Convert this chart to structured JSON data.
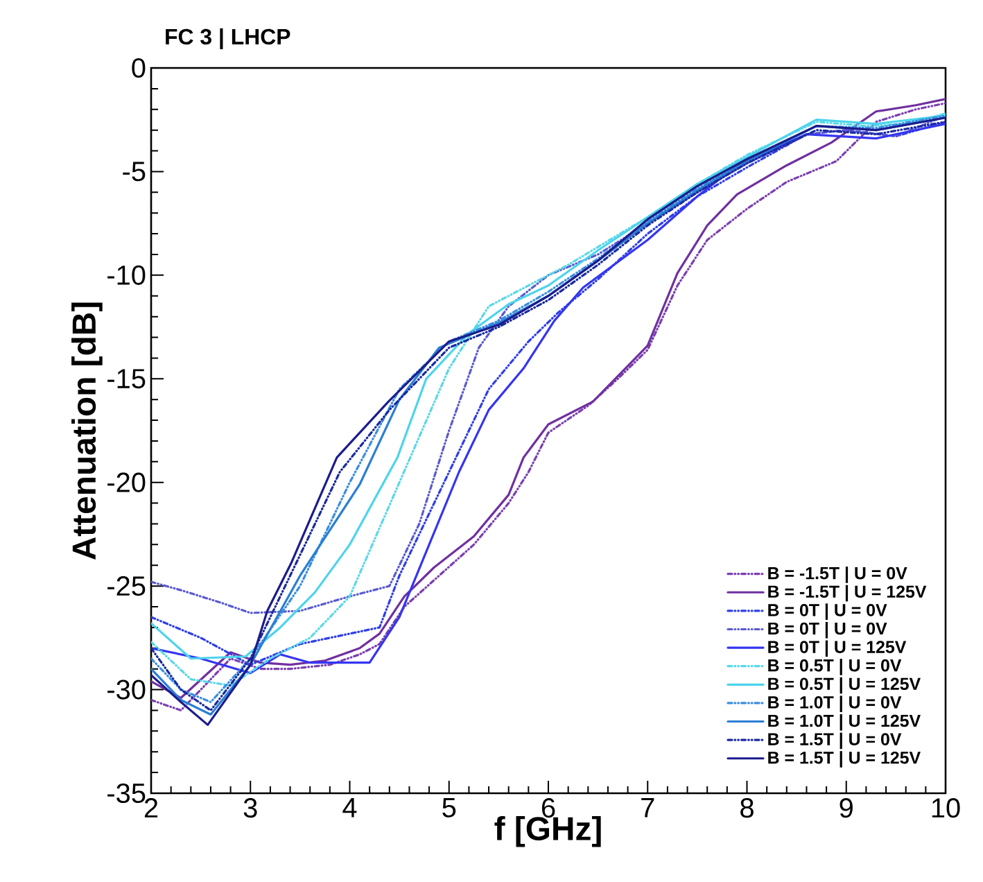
{
  "chart_data": {
    "type": "line",
    "title": "FC 3  |  LHCP",
    "xlabel": "f [GHz]",
    "ylabel": "Attenuation [dB]",
    "xlim": [
      2,
      10
    ],
    "xticks": [
      2,
      3,
      4,
      5,
      6,
      7,
      8,
      9,
      10
    ],
    "ylim": [
      -35,
      0
    ],
    "yticks": [
      -35,
      -30,
      -25,
      -20,
      -15,
      -10,
      -5,
      0
    ],
    "grid": false,
    "legend": "bottom right",
    "marker": "none",
    "series": [
      {
        "name": "B = -1.5T  |  U = 0V",
        "color": "#7b3fb0",
        "line_style": "dashdotdotted",
        "x": [
          2,
          2.3,
          2.8,
          3.1,
          3.4,
          3.8,
          4.1,
          4.3,
          4.55,
          4.9,
          5.25,
          5.6,
          5.8,
          6.0,
          6.4,
          6.7,
          7.0,
          7.3,
          7.6,
          8.0,
          8.4,
          8.9,
          9.3,
          9.7,
          10
        ],
        "values": [
          -30.5,
          -31,
          -28.5,
          -29,
          -29,
          -28.8,
          -28.3,
          -27.8,
          -26,
          -24.5,
          -23,
          -21,
          -19.5,
          -17.6,
          -16.3,
          -15,
          -13.6,
          -10.5,
          -8.3,
          -6.8,
          -5.5,
          -4.5,
          -2.6,
          -2.0,
          -1.7
        ]
      },
      {
        "name": "B = -1.5T  |  U = 125V",
        "color": "#7030a0",
        "line_style": "solid",
        "x": [
          2,
          2.3,
          2.8,
          3.1,
          3.4,
          3.75,
          4.1,
          4.3,
          4.55,
          4.85,
          5.25,
          5.6,
          5.75,
          6.0,
          6.45,
          7.0,
          7.3,
          7.6,
          7.9,
          8.4,
          8.85,
          9.3,
          9.7,
          10
        ],
        "values": [
          -29.6,
          -30.4,
          -28.2,
          -28.7,
          -28.8,
          -28.6,
          -28,
          -27.3,
          -25.5,
          -24.1,
          -22.6,
          -20.6,
          -18.8,
          -17.2,
          -16.1,
          -13.4,
          -9.9,
          -7.6,
          -6.1,
          -4.7,
          -3.6,
          -2.1,
          -1.8,
          -1.5
        ]
      },
      {
        "name": "B = 0T  |  U = 0V",
        "color": "#2f3fe8",
        "line_style": "dashdotdotted",
        "x": [
          2,
          2.5,
          3.0,
          3.5,
          4.0,
          4.3,
          4.5,
          4.8,
          5.1,
          5.4,
          5.8,
          6.1,
          6.5,
          7.0,
          7.5,
          8.0,
          8.6,
          9.0,
          9.5,
          10
        ],
        "values": [
          -26.5,
          -27.5,
          -28.8,
          -27.8,
          -27.3,
          -27,
          -24.5,
          -21.5,
          -18.5,
          -15.5,
          -13.2,
          -11.8,
          -10.2,
          -8.0,
          -6.2,
          -4.8,
          -3.2,
          -3.0,
          -3.3,
          -2.6
        ]
      },
      {
        "name": "B = 0T  |  U = 0V",
        "color": "#5a5ad0",
        "line_style": "dashdotdotted",
        "x": [
          2,
          2.3,
          2.7,
          3.0,
          3.5,
          4.0,
          4.4,
          4.7,
          5.0,
          5.3,
          5.6,
          6.0,
          6.5,
          7.0,
          7.5,
          8.0,
          8.6,
          9.0,
          9.5,
          10
        ],
        "values": [
          -24.8,
          -25.2,
          -25.8,
          -26.3,
          -26.2,
          -25.5,
          -25,
          -22,
          -17.5,
          -13.5,
          -11.5,
          -10.0,
          -9.0,
          -7.5,
          -6,
          -4.6,
          -3.2,
          -3.0,
          -3.3,
          -2.3
        ]
      },
      {
        "name": "B = 0T  |  U = 125V",
        "color": "#3535f0",
        "line_style": "solid",
        "x": [
          2,
          2.5,
          3.0,
          3.3,
          3.6,
          4.2,
          4.5,
          4.8,
          5.1,
          5.4,
          5.75,
          6.06,
          6.35,
          7.0,
          7.5,
          7.9,
          8.6,
          9.3,
          10
        ],
        "values": [
          -28,
          -28.5,
          -29.2,
          -28.3,
          -28.7,
          -28.7,
          -26.5,
          -23,
          -19.5,
          -16.5,
          -14.5,
          -12.2,
          -10.6,
          -8.3,
          -6.2,
          -4.7,
          -3.2,
          -3.4,
          -2.7
        ]
      },
      {
        "name": "B = 0.5T  |  U = 0V",
        "color": "#5ad8e8",
        "line_style": "dashdotdotted",
        "x": [
          2,
          2.4,
          2.8,
          3.2,
          3.6,
          4.0,
          4.5,
          5.0,
          5.4,
          5.8,
          6.2,
          7.0,
          7.5,
          8.0,
          8.7,
          9.2,
          9.6,
          10
        ],
        "values": [
          -27.7,
          -29.5,
          -29.8,
          -28.5,
          -27.5,
          -25.5,
          -20,
          -14.5,
          -11.5,
          -10.5,
          -9.5,
          -7.2,
          -5.6,
          -4.2,
          -2.6,
          -2.8,
          -2.7,
          -2.2
        ]
      },
      {
        "name": "B = 0.5T  |  U = 125V",
        "color": "#4cd4ec",
        "line_style": "solid",
        "x": [
          2,
          2.4,
          2.95,
          3.3,
          3.65,
          4.0,
          4.48,
          4.77,
          5.2,
          5.6,
          6.0,
          6.5,
          7.0,
          7.5,
          8.0,
          8.7,
          9.3,
          10
        ],
        "values": [
          -26.8,
          -28.5,
          -28.4,
          -27,
          -25.3,
          -23,
          -18.8,
          -15,
          -12.8,
          -11.4,
          -10.5,
          -8.8,
          -7.2,
          -5.6,
          -4.3,
          -2.5,
          -2.7,
          -2.3
        ]
      },
      {
        "name": "B = 1.0T  |  U = 0V",
        "color": "#3a8ee0",
        "line_style": "dashdotdotted",
        "x": [
          2,
          2.3,
          2.6,
          3.0,
          3.5,
          4.0,
          4.5,
          5.0,
          5.5,
          6.0,
          6.5,
          7.0,
          7.5,
          8.0,
          8.7,
          9.3,
          10
        ],
        "values": [
          -28.5,
          -30,
          -30.6,
          -28.5,
          -25,
          -20,
          -15.5,
          -13.2,
          -12.2,
          -10.8,
          -9.2,
          -7.4,
          -5.8,
          -4.4,
          -2.8,
          -2.9,
          -2.3
        ]
      },
      {
        "name": "B = 1.0T  |  U = 125V",
        "color": "#2a7fd4",
        "line_style": "solid",
        "x": [
          2,
          2.3,
          2.6,
          3.0,
          3.5,
          4.1,
          4.5,
          4.9,
          5.5,
          6.0,
          6.5,
          7.0,
          7.5,
          8.0,
          8.7,
          9.3,
          10
        ],
        "values": [
          -29,
          -30.5,
          -31.2,
          -28.8,
          -24.5,
          -20.1,
          -16,
          -13.5,
          -12.3,
          -11,
          -9.3,
          -7.5,
          -5.9,
          -4.5,
          -2.8,
          -3.0,
          -2.4
        ]
      },
      {
        "name": "B = 1.5T  |  U = 0V",
        "color": "#1a2aa0",
        "line_style": "dashdotdotted",
        "x": [
          2,
          2.3,
          2.6,
          3.0,
          3.4,
          3.9,
          4.4,
          5.0,
          5.5,
          6.0,
          6.5,
          7.0,
          7.5,
          8.0,
          8.7,
          9.3,
          10
        ],
        "values": [
          -28,
          -30,
          -31,
          -28.5,
          -24.5,
          -19.5,
          -16.5,
          -13.5,
          -12.5,
          -11.2,
          -9.5,
          -7.6,
          -6.0,
          -4.6,
          -3.0,
          -3.2,
          -2.6
        ]
      },
      {
        "name": "B = 1.5T  |  U = 125V",
        "color": "#1c1c8c",
        "line_style": "solid",
        "x": [
          2,
          2.3,
          2.57,
          3.0,
          3.17,
          3.41,
          3.87,
          4.39,
          5.0,
          5.5,
          6.0,
          6.5,
          7.0,
          7.5,
          8.0,
          8.7,
          9.3,
          10
        ],
        "values": [
          -29.3,
          -30.6,
          -31.7,
          -28.8,
          -26.2,
          -23.9,
          -18.8,
          -16.1,
          -13.2,
          -12.4,
          -11,
          -9.3,
          -7.3,
          -5.7,
          -4.4,
          -2.8,
          -3.0,
          -2.4
        ]
      }
    ]
  }
}
